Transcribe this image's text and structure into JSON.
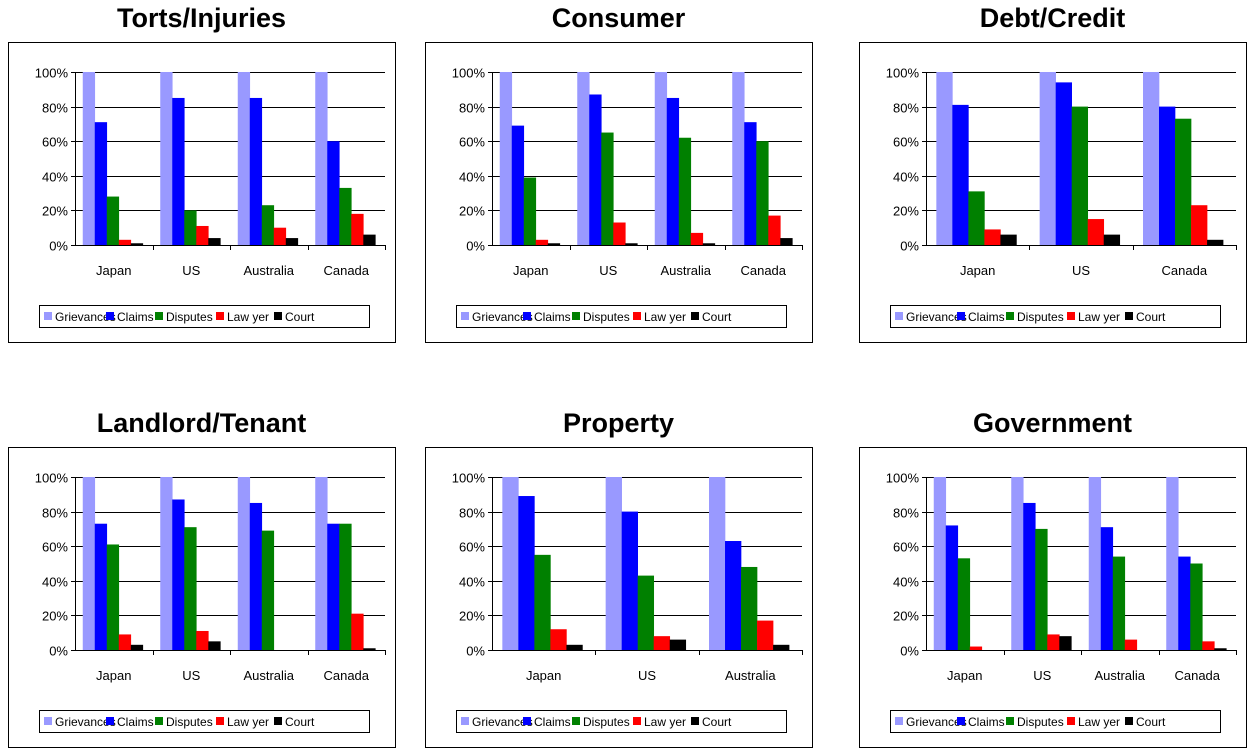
{
  "series_names": [
    "Grievances",
    "Claims",
    "Disputes",
    "Law yer",
    "Court"
  ],
  "series_colors": [
    "#9999ff",
    "#0000ff",
    "#008000",
    "#ff0000",
    "#000000"
  ],
  "y_tick_labels": [
    "0%",
    "20%",
    "40%",
    "60%",
    "80%",
    "100%"
  ],
  "chart_data": [
    {
      "type": "bar",
      "title": "Torts/Injuries",
      "categories": [
        "Japan",
        "US",
        "Australia",
        "Canada"
      ],
      "ylim": [
        0,
        100
      ],
      "series": [
        {
          "name": "Grievances",
          "values": [
            100,
            100,
            100,
            100
          ]
        },
        {
          "name": "Claims",
          "values": [
            71,
            85,
            85,
            60
          ]
        },
        {
          "name": "Disputes",
          "values": [
            28,
            20,
            23,
            33
          ]
        },
        {
          "name": "Law yer",
          "values": [
            3,
            11,
            10,
            18
          ]
        },
        {
          "name": "Court",
          "values": [
            1,
            4,
            4,
            6
          ]
        }
      ]
    },
    {
      "type": "bar",
      "title": "Consumer",
      "categories": [
        "Japan",
        "US",
        "Australia",
        "Canada"
      ],
      "ylim": [
        0,
        100
      ],
      "series": [
        {
          "name": "Grievances",
          "values": [
            100,
            100,
            100,
            100
          ]
        },
        {
          "name": "Claims",
          "values": [
            69,
            87,
            85,
            71
          ]
        },
        {
          "name": "Disputes",
          "values": [
            39,
            65,
            62,
            60
          ]
        },
        {
          "name": "Law yer",
          "values": [
            3,
            13,
            7,
            17
          ]
        },
        {
          "name": "Court",
          "values": [
            1,
            1,
            1,
            4
          ]
        }
      ]
    },
    {
      "type": "bar",
      "title": "Debt/Credit",
      "categories": [
        "Japan",
        "US",
        "Canada"
      ],
      "ylim": [
        0,
        100
      ],
      "series": [
        {
          "name": "Grievances",
          "values": [
            100,
            100,
            100
          ]
        },
        {
          "name": "Claims",
          "values": [
            81,
            94,
            80
          ]
        },
        {
          "name": "Disputes",
          "values": [
            31,
            80,
            73
          ]
        },
        {
          "name": "Law yer",
          "values": [
            9,
            15,
            23
          ]
        },
        {
          "name": "Court",
          "values": [
            6,
            6,
            3
          ]
        }
      ]
    },
    {
      "type": "bar",
      "title": "Landlord/Tenant",
      "categories": [
        "Japan",
        "US",
        "Australia",
        "Canada"
      ],
      "ylim": [
        0,
        100
      ],
      "series": [
        {
          "name": "Grievances",
          "values": [
            100,
            100,
            100,
            100
          ]
        },
        {
          "name": "Claims",
          "values": [
            73,
            87,
            85,
            73
          ]
        },
        {
          "name": "Disputes",
          "values": [
            61,
            71,
            69,
            73
          ]
        },
        {
          "name": "Law yer",
          "values": [
            9,
            11,
            0,
            21
          ]
        },
        {
          "name": "Court",
          "values": [
            3,
            5,
            0,
            1
          ]
        }
      ]
    },
    {
      "type": "bar",
      "title": "Property",
      "categories": [
        "Japan",
        "US",
        "Australia"
      ],
      "ylim": [
        0,
        100
      ],
      "series": [
        {
          "name": "Grievances",
          "values": [
            100,
            100,
            100
          ]
        },
        {
          "name": "Claims",
          "values": [
            89,
            80,
            63
          ]
        },
        {
          "name": "Disputes",
          "values": [
            55,
            43,
            48
          ]
        },
        {
          "name": "Law yer",
          "values": [
            12,
            8,
            17
          ]
        },
        {
          "name": "Court",
          "values": [
            3,
            6,
            3
          ]
        }
      ]
    },
    {
      "type": "bar",
      "title": "Government",
      "categories": [
        "Japan",
        "US",
        "Australia",
        "Canada"
      ],
      "ylim": [
        0,
        100
      ],
      "series": [
        {
          "name": "Grievances",
          "values": [
            100,
            100,
            100,
            100
          ]
        },
        {
          "name": "Claims",
          "values": [
            72,
            85,
            71,
            54
          ]
        },
        {
          "name": "Disputes",
          "values": [
            53,
            70,
            54,
            50
          ]
        },
        {
          "name": "Law yer",
          "values": [
            2,
            9,
            6,
            5
          ]
        },
        {
          "name": "Court",
          "values": [
            0,
            8,
            0,
            1
          ]
        }
      ]
    }
  ]
}
